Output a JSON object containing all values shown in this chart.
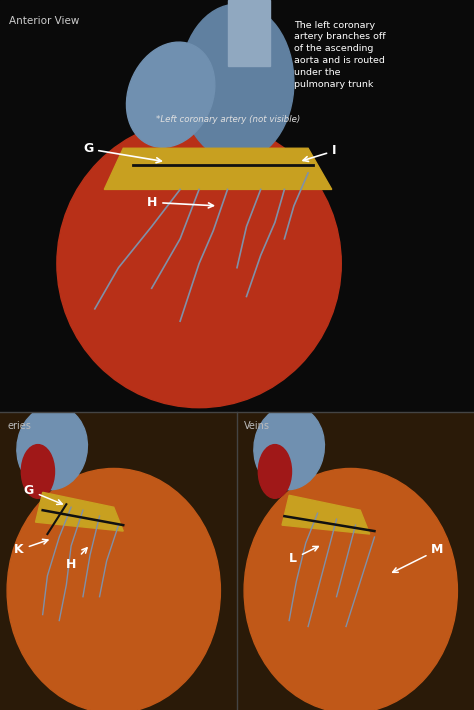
{
  "fig_width": 4.74,
  "fig_height": 7.1,
  "dpi": 100,
  "bg_color": "#000000",
  "top_panel": {
    "label_anterior": "Anterior View",
    "annotation_text": "The left coronary\nartery branches off\nof the ascending\naorta and is routed\nunder the\npulmonary trunk",
    "label_left_coronary": "*Left coronary artery (not visible)"
  },
  "bottom_left_label": "eries",
  "bottom_right_label": "Veins",
  "text_color": "#ffffff",
  "label_fontsize": 9,
  "arrow_color": "#ffffff",
  "divider_color": "#444444"
}
